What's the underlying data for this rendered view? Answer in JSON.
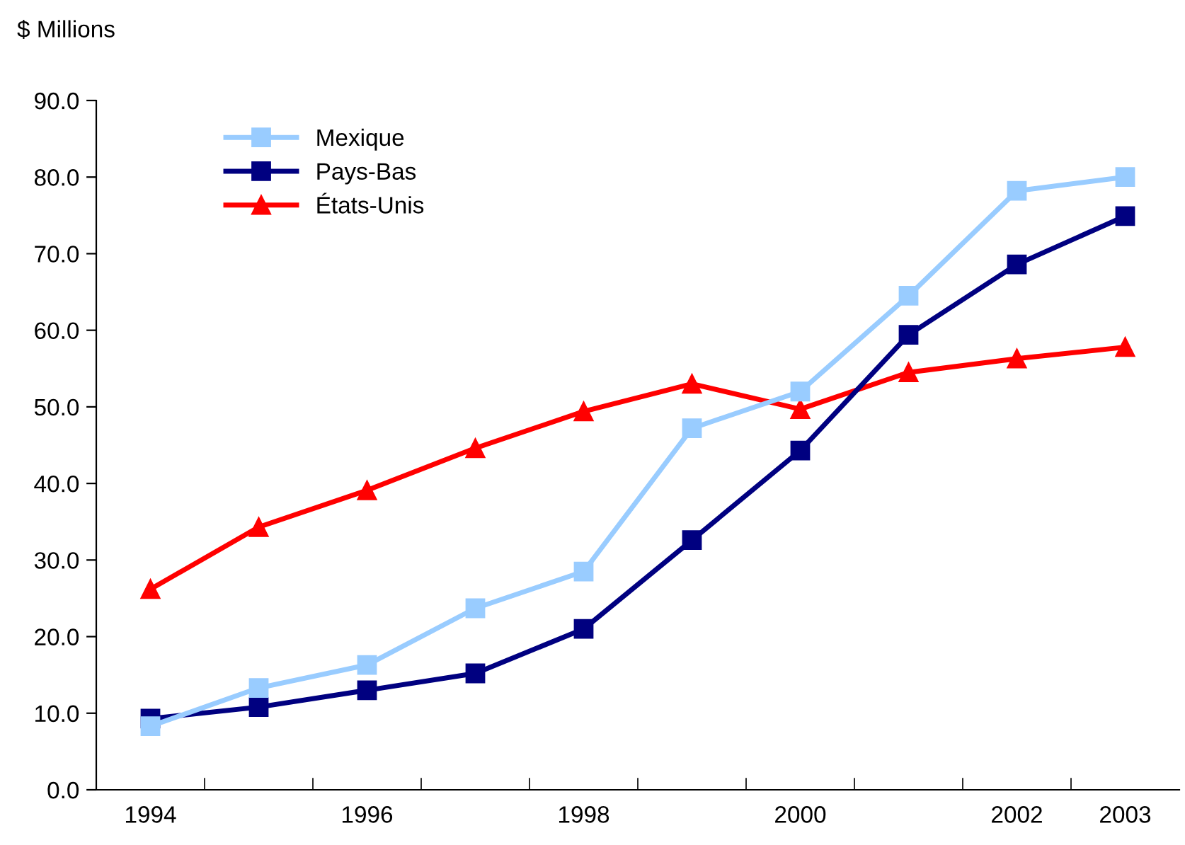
{
  "chart_data": {
    "type": "line",
    "ylabel": "$ Millions",
    "categories": [
      "1994",
      null,
      "1996",
      null,
      "1998",
      null,
      "2000",
      null,
      "2002",
      "2003"
    ],
    "series": [
      {
        "name": "Mexique",
        "color": "#99ccff",
        "marker": "square",
        "values": [
          8.3,
          13.3,
          16.3,
          23.7,
          28.5,
          47.2,
          52.0,
          64.5,
          78.2,
          80.0
        ]
      },
      {
        "name": "Pays-Bas",
        "color": "#000080",
        "marker": "square",
        "values": [
          9.3,
          10.8,
          13.0,
          15.2,
          21.0,
          32.6,
          44.3,
          59.4,
          68.6,
          74.9
        ]
      },
      {
        "name": "États-Unis",
        "color": "#ff0000",
        "marker": "triangle",
        "values": [
          26.2,
          34.3,
          39.1,
          44.6,
          49.4,
          53.0,
          49.7,
          54.5,
          56.3,
          57.8
        ]
      }
    ],
    "ylim": [
      0,
      90
    ],
    "yticks": [
      {
        "value": 0,
        "label": "0.0"
      },
      {
        "value": 10,
        "label": "10.0"
      },
      {
        "value": 20,
        "label": "20.0"
      },
      {
        "value": 30,
        "label": "30.0"
      },
      {
        "value": 40,
        "label": "40.0"
      },
      {
        "value": 50,
        "label": "50.0"
      },
      {
        "value": 60,
        "label": "60.0"
      },
      {
        "value": 70,
        "label": "70.0"
      },
      {
        "value": 80,
        "label": "80.0"
      },
      {
        "value": 90,
        "label": "90.0"
      }
    ],
    "grid": false,
    "legend": "top left",
    "line_style": "solid"
  }
}
